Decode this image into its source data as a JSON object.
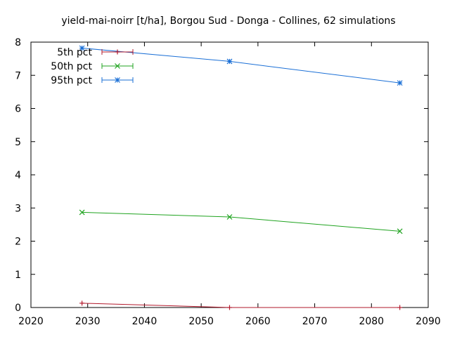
{
  "chart_data": {
    "type": "line",
    "title": "yield-mai-noirr [t/ha], Borgou Sud - Donga - Collines, 62 simulations",
    "xlabel": "",
    "ylabel": "",
    "xlim": [
      2020,
      2090
    ],
    "ylim": [
      0,
      8
    ],
    "x_ticks": [
      2020,
      2030,
      2040,
      2050,
      2060,
      2070,
      2080,
      2090
    ],
    "y_ticks": [
      0,
      1,
      2,
      3,
      4,
      5,
      6,
      7,
      8
    ],
    "grid": false,
    "legend_position": "top-left",
    "x": [
      2029,
      2055,
      2085
    ],
    "series": [
      {
        "name": "5th pct",
        "color": "#b2182b",
        "marker": "plus",
        "values": [
          0.13,
          0.0,
          0.0
        ]
      },
      {
        "name": "50th pct",
        "color": "#1fa31f",
        "marker": "cross",
        "values": [
          2.87,
          2.73,
          2.3
        ]
      },
      {
        "name": "95th pct",
        "color": "#1a6fd6",
        "marker": "asterisk",
        "values": [
          7.82,
          7.42,
          6.77
        ]
      }
    ]
  }
}
